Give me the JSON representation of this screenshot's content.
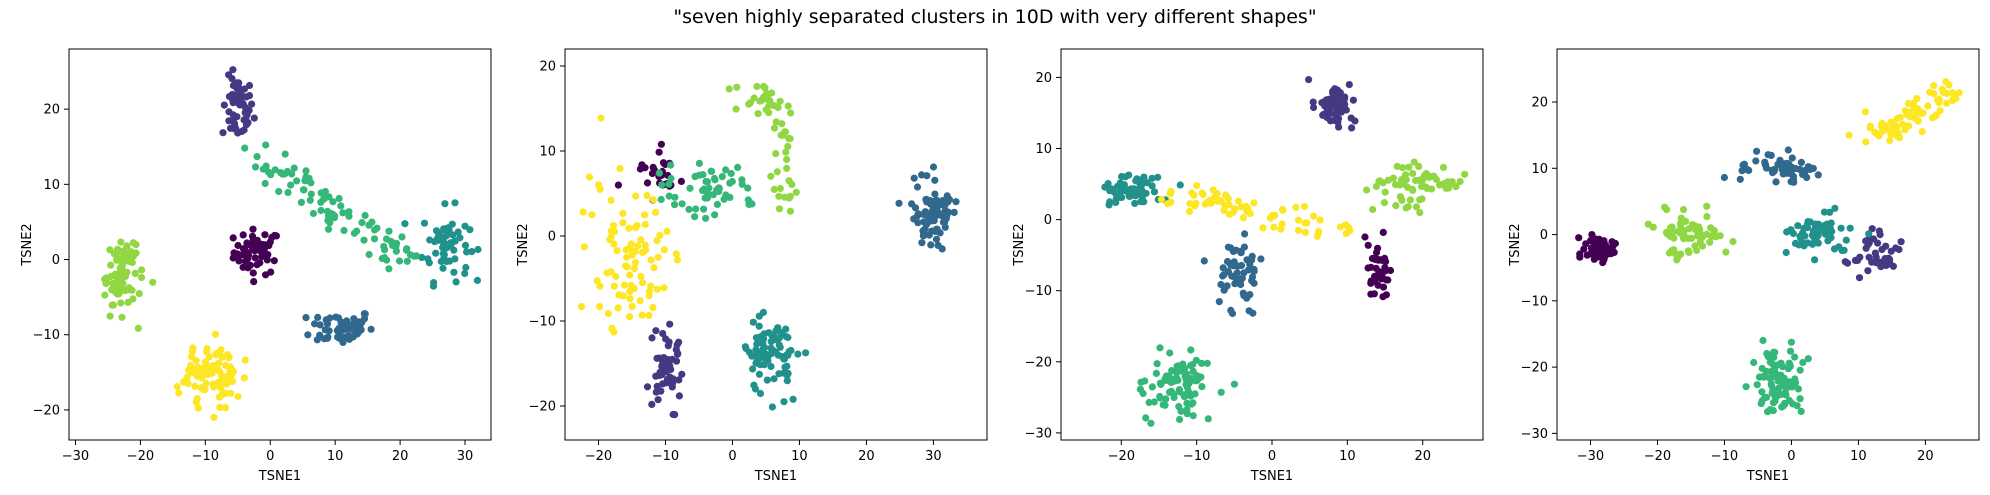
{
  "figure": {
    "title": "\"seven highly separated clusters in 10D with very different shapes\""
  },
  "colors": {
    "c0": "#440154",
    "c1": "#443983",
    "c2": "#31688e",
    "c3": "#21918c",
    "c4": "#35b779",
    "c5": "#90d743",
    "c6": "#fde725"
  },
  "chart_data": [
    {
      "type": "scatter",
      "title": "",
      "xlabel": "TSNE1",
      "ylabel": "TSNE2",
      "xlim": [
        -31,
        34
      ],
      "ylim": [
        -24,
        28
      ],
      "xticks": [
        -30,
        -20,
        -10,
        0,
        10,
        20,
        30
      ],
      "yticks": [
        -20,
        -10,
        0,
        10,
        20
      ],
      "grid": false,
      "legend": "none",
      "clusters": [
        {
          "color": "c0",
          "shape": "blob",
          "center": [
            -2,
            1
          ],
          "spread": [
            3,
            2.5
          ],
          "count": 55
        },
        {
          "color": "c1",
          "shape": "blob",
          "center": [
            -5,
            20
          ],
          "spread": [
            2,
            3.5
          ],
          "count": 55
        },
        {
          "color": "c2",
          "shape": "blob",
          "center": [
            11,
            -9
          ],
          "spread": [
            4,
            2
          ],
          "count": 60
        },
        {
          "color": "c3",
          "shape": "blob",
          "center": [
            27,
            2
          ],
          "spread": [
            3,
            4
          ],
          "count": 60
        },
        {
          "color": "c4",
          "shape": "arc",
          "path": [
            [
              -2,
              14
            ],
            [
              6,
              9
            ],
            [
              14,
              4
            ],
            [
              22,
              0
            ]
          ],
          "spread": [
            2.5,
            2
          ],
          "count": 90
        },
        {
          "color": "c5",
          "shape": "blob",
          "center": [
            -23,
            -2
          ],
          "spread": [
            2.5,
            4.5
          ],
          "count": 85
        },
        {
          "color": "c6",
          "shape": "blob",
          "center": [
            -9,
            -15
          ],
          "spread": [
            3.5,
            3.5
          ],
          "count": 95
        }
      ]
    },
    {
      "type": "scatter",
      "title": "",
      "xlabel": "TSNE1",
      "ylabel": "TSNE2",
      "xlim": [
        -25,
        38
      ],
      "ylim": [
        -24,
        22
      ],
      "xticks": [
        -20,
        -10,
        0,
        10,
        20,
        30
      ],
      "yticks": [
        -20,
        -10,
        0,
        10,
        20
      ],
      "grid": false,
      "legend": "none",
      "clusters": [
        {
          "color": "c0",
          "shape": "blob",
          "center": [
            -11,
            7
          ],
          "spread": [
            2.5,
            2
          ],
          "count": 25
        },
        {
          "color": "c1",
          "shape": "blob",
          "center": [
            -10,
            -16
          ],
          "spread": [
            2,
            4
          ],
          "count": 55
        },
        {
          "color": "c2",
          "shape": "blob",
          "center": [
            30,
            3
          ],
          "spread": [
            3,
            4
          ],
          "count": 75
        },
        {
          "color": "c3",
          "shape": "blob",
          "center": [
            6,
            -14
          ],
          "spread": [
            3.5,
            3.5
          ],
          "count": 80
        },
        {
          "color": "c4",
          "shape": "blob",
          "center": [
            -4,
            5
          ],
          "spread": [
            6,
            2.5
          ],
          "count": 55
        },
        {
          "color": "c5",
          "shape": "arc",
          "path": [
            [
              1,
              17
            ],
            [
              6,
              16
            ],
            [
              9,
              10
            ],
            [
              7,
              4
            ]
          ],
          "spread": [
            2,
            2
          ],
          "count": 55
        },
        {
          "color": "c6",
          "shape": "blob",
          "center": [
            -15,
            -3
          ],
          "spread": [
            5,
            8
          ],
          "count": 85
        }
      ]
    },
    {
      "type": "scatter",
      "title": "",
      "xlabel": "TSNE1",
      "ylabel": "TSNE2",
      "xlim": [
        -28,
        28
      ],
      "ylim": [
        -31,
        24
      ],
      "xticks": [
        -20,
        -10,
        0,
        10,
        20
      ],
      "yticks": [
        -30,
        -20,
        -10,
        0,
        10,
        20
      ],
      "grid": false,
      "legend": "none",
      "clusters": [
        {
          "color": "c0",
          "shape": "blob",
          "center": [
            14,
            -7
          ],
          "spread": [
            1.2,
            3.5
          ],
          "count": 40
        },
        {
          "color": "c1",
          "shape": "blob",
          "center": [
            8,
            16
          ],
          "spread": [
            2.5,
            2.5
          ],
          "count": 55
        },
        {
          "color": "c2",
          "shape": "blob",
          "center": [
            -4,
            -8
          ],
          "spread": [
            2.5,
            4
          ],
          "count": 55
        },
        {
          "color": "c3",
          "shape": "blob",
          "center": [
            -19,
            4
          ],
          "spread": [
            3.5,
            2
          ],
          "count": 60
        },
        {
          "color": "c4",
          "shape": "blob",
          "center": [
            -12,
            -23
          ],
          "spread": [
            3.5,
            4
          ],
          "count": 85
        },
        {
          "color": "c5",
          "shape": "blob",
          "center": [
            19,
            5
          ],
          "spread": [
            5,
            2.5
          ],
          "count": 65
        },
        {
          "color": "c6",
          "shape": "arc",
          "path": [
            [
              -14,
              3
            ],
            [
              -6,
              2
            ],
            [
              3,
              0
            ],
            [
              10,
              -2
            ]
          ],
          "spread": [
            2.5,
            1.8
          ],
          "count": 70
        }
      ]
    },
    {
      "type": "scatter",
      "title": "",
      "xlabel": "TSNE1",
      "ylabel": "TSNE2",
      "xlim": [
        -35,
        28
      ],
      "ylim": [
        -31,
        28
      ],
      "xticks": [
        -30,
        -20,
        -10,
        0,
        10,
        20
      ],
      "yticks": [
        -30,
        -20,
        -10,
        0,
        10,
        20
      ],
      "grid": false,
      "legend": "none",
      "clusters": [
        {
          "color": "c0",
          "shape": "blob",
          "center": [
            -29,
            -2
          ],
          "spread": [
            2.5,
            2
          ],
          "count": 55
        },
        {
          "color": "c1",
          "shape": "blob",
          "center": [
            12,
            -4
          ],
          "spread": [
            3,
            3
          ],
          "count": 40
        },
        {
          "color": "c2",
          "shape": "blob",
          "center": [
            -1,
            10
          ],
          "spread": [
            5,
            2
          ],
          "count": 55
        },
        {
          "color": "c3",
          "shape": "blob",
          "center": [
            4,
            0
          ],
          "spread": [
            4,
            3
          ],
          "count": 55
        },
        {
          "color": "c4",
          "shape": "blob",
          "center": [
            -2,
            -22
          ],
          "spread": [
            3,
            4
          ],
          "count": 85
        },
        {
          "color": "c5",
          "shape": "blob",
          "center": [
            -15,
            0
          ],
          "spread": [
            4,
            2.5
          ],
          "count": 65
        },
        {
          "color": "c6",
          "shape": "arc",
          "path": [
            [
              11,
              15
            ],
            [
              17,
              17
            ],
            [
              22,
              20
            ],
            [
              24,
              23
            ]
          ],
          "spread": [
            2.5,
            2
          ],
          "count": 80
        }
      ]
    }
  ]
}
